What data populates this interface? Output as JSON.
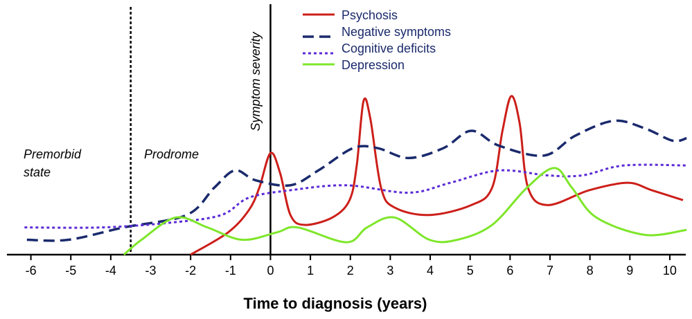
{
  "chart_data": {
    "type": "line",
    "y_label": "Symptom severity",
    "x_label": "Time to diagnosis (years)",
    "annotations": [
      "Premorbid",
      "state",
      "Prodrome"
    ],
    "vlines": [
      -3.5
    ],
    "xlim": [
      -6.6,
      10.4
    ],
    "ylim": [
      0,
      100
    ],
    "xticks": [
      -6,
      -5,
      -4,
      -3,
      -2,
      -1,
      0,
      1,
      2,
      3,
      4,
      5,
      6,
      7,
      8,
      9,
      10
    ],
    "legend": "top",
    "series": [
      {
        "name": "Psychosis",
        "color": "#cc1f1a",
        "style": "solid",
        "x": [
          -2.0,
          -1.06,
          -0.54,
          -0.28,
          0,
          0.24,
          0.5,
          0.85,
          1.55,
          1.98,
          2.16,
          2.33,
          2.5,
          2.77,
          3.11,
          3.98,
          5.03,
          5.55,
          5.81,
          6.03,
          6.24,
          6.45,
          6.94,
          7.98,
          8.94,
          9.55,
          10.33
        ],
        "values": [
          0,
          9,
          18,
          27,
          41,
          33,
          16,
          12,
          15,
          22,
          36,
          62,
          55,
          27,
          19,
          16,
          20,
          27,
          50,
          64,
          53,
          27,
          20,
          26,
          29,
          26,
          22
        ]
      },
      {
        "name": "Negative symptoms",
        "color": "#1a2a6c",
        "style": "dashed",
        "x": [
          -6.1,
          -5.06,
          -3.67,
          -2.1,
          -1.41,
          -0.89,
          -0.37,
          0.5,
          1.2,
          2.07,
          2.68,
          3.46,
          4.33,
          5.03,
          5.72,
          6.85,
          7.63,
          8.59,
          9.37,
          10.07,
          10.42
        ],
        "values": [
          6,
          6,
          11,
          16,
          27,
          34,
          30,
          28,
          34,
          43,
          43,
          39,
          43,
          50,
          44,
          40,
          48,
          54,
          51,
          46,
          47
        ]
      },
      {
        "name": "Cognitive deficits",
        "color": "#5b2bd6",
        "style": "dotted",
        "x": [
          -6.16,
          -4.19,
          -2.45,
          -1.23,
          -0.54,
          0.5,
          1.9,
          3.46,
          4.5,
          5.72,
          6.94,
          7.81,
          8.85,
          10.42
        ],
        "values": [
          11,
          11,
          13,
          16,
          23,
          26,
          28,
          25,
          29,
          34,
          32,
          32,
          36,
          36
        ]
      },
      {
        "name": "Depression",
        "color": "#7ee62a",
        "style": "solid",
        "x": [
          -3.67,
          -3.23,
          -2.37,
          -1.58,
          -0.71,
          0.16,
          0.68,
          1.9,
          2.42,
          3.11,
          3.98,
          4.68,
          5.55,
          6.42,
          7.11,
          7.55,
          8.16,
          9.37,
          10.42
        ],
        "values": [
          0,
          6,
          15,
          11,
          6,
          9,
          11,
          5,
          11,
          15,
          6,
          6,
          12,
          27,
          35,
          27,
          15,
          8,
          10
        ]
      }
    ]
  }
}
